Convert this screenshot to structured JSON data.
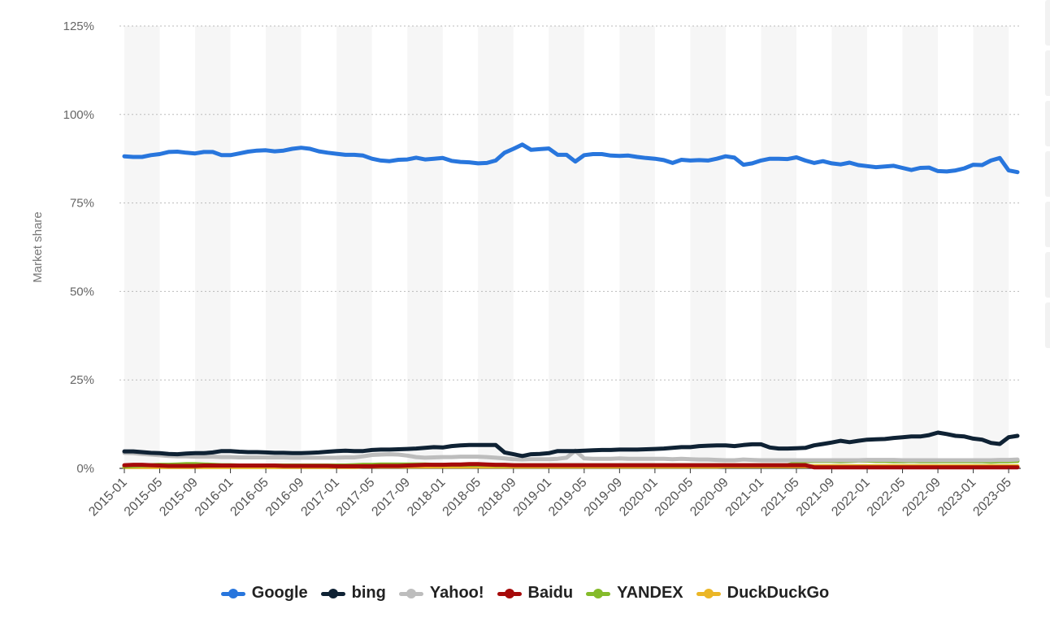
{
  "chart_data": {
    "type": "line",
    "title": "",
    "xlabel": "",
    "ylabel": "Market share",
    "ylim": [
      0,
      125
    ],
    "y_ticks": [
      "0%",
      "25%",
      "50%",
      "75%",
      "100%",
      "125%"
    ],
    "x_ticks": [
      "2015-01",
      "2015-05",
      "2015-09",
      "2016-01",
      "2016-05",
      "2016-09",
      "2017-01",
      "2017-05",
      "2017-09",
      "2018-01",
      "2018-05",
      "2018-09",
      "2019-01",
      "2019-05",
      "2019-09",
      "2020-01",
      "2020-05",
      "2020-09",
      "2021-01",
      "2021-05",
      "2021-09",
      "2022-01",
      "2022-05",
      "2022-09",
      "2023-01",
      "2023-05"
    ],
    "grid": true,
    "legend_position": "bottom",
    "series": [
      {
        "name": "Google",
        "color": "#2876DD",
        "values": [
          88.2,
          88,
          88,
          88.5,
          88.8,
          89.4,
          89.5,
          89.2,
          89,
          89.4,
          89.4,
          88.5,
          88.5,
          89,
          89.5,
          89.8,
          89.9,
          89.6,
          89.8,
          90.3,
          90.6,
          90.3,
          89.6,
          89.2,
          88.9,
          88.6,
          88.6,
          88.4,
          87.5,
          87,
          86.8,
          87.2,
          87.3,
          87.8,
          87.3,
          87.5,
          87.7,
          86.9,
          86.6,
          86.5,
          86.2,
          86.3,
          87,
          89.2,
          90.3,
          91.5,
          90,
          90.2,
          90.4,
          88.6,
          88.6,
          86.7,
          88.5,
          88.8,
          88.8,
          88.4,
          88.3,
          88.4,
          88,
          87.7,
          87.5,
          87.1,
          86.3,
          87.2,
          87,
          87.1,
          87,
          87.5,
          88.2,
          87.8,
          85.8,
          86.2,
          87,
          87.5,
          87.5,
          87.4,
          87.9,
          87,
          86.3,
          86.8,
          86.2,
          85.9,
          86.4,
          85.7,
          85.4,
          85.1,
          85.3,
          85.5,
          84.9,
          84.3,
          84.9,
          85,
          84,
          83.9,
          84.2,
          84.8,
          85.8,
          85.7,
          87,
          87.7,
          84.2,
          83.7
        ]
      },
      {
        "name": "bing",
        "color": "#0F2234",
        "values": [
          4.8,
          4.8,
          4.6,
          4.4,
          4.3,
          4.1,
          4.0,
          4.2,
          4.3,
          4.3,
          4.5,
          4.9,
          4.9,
          4.7,
          4.6,
          4.6,
          4.5,
          4.4,
          4.4,
          4.3,
          4.3,
          4.4,
          4.5,
          4.7,
          4.9,
          5.0,
          4.9,
          4.9,
          5.2,
          5.3,
          5.3,
          5.4,
          5.5,
          5.6,
          5.8,
          6.0,
          5.9,
          6.3,
          6.5,
          6.6,
          6.6,
          6.6,
          6.6,
          4.5,
          4.0,
          3.5,
          4.0,
          4.1,
          4.3,
          4.9,
          4.9,
          4.9,
          5.0,
          5.1,
          5.2,
          5.2,
          5.3,
          5.3,
          5.3,
          5.4,
          5.5,
          5.6,
          5.8,
          6.0,
          6.0,
          6.3,
          6.4,
          6.5,
          6.5,
          6.3,
          6.6,
          6.8,
          6.8,
          5.9,
          5.6,
          5.6,
          5.7,
          5.8,
          6.5,
          6.9,
          7.3,
          7.8,
          7.4,
          7.8,
          8.1,
          8.2,
          8.3,
          8.6,
          8.8,
          9.0,
          9.0,
          9.4,
          10.1,
          9.7,
          9.2,
          9.0,
          8.4,
          8.1,
          7.2,
          6.9,
          8.8,
          9.2
        ]
      },
      {
        "name": "Yahoo!",
        "color": "#BDBDBD",
        "values": [
          4.4,
          4.3,
          4.1,
          3.9,
          3.7,
          3.5,
          3.4,
          3.4,
          3.3,
          3.3,
          3.3,
          3.2,
          3.2,
          3.1,
          3.1,
          3.1,
          3.1,
          3.1,
          3.1,
          3.0,
          3.0,
          3.0,
          3.0,
          3.0,
          3.0,
          3.1,
          3.1,
          3.4,
          3.8,
          3.9,
          4.0,
          3.9,
          3.6,
          3.2,
          3.0,
          3.1,
          3.2,
          3.2,
          3.3,
          3.3,
          3.3,
          3.2,
          3.0,
          2.8,
          2.6,
          2.5,
          2.6,
          2.6,
          2.6,
          2.7,
          3.0,
          5.0,
          2.8,
          2.7,
          2.7,
          2.7,
          2.8,
          2.7,
          2.7,
          2.7,
          2.7,
          2.7,
          2.6,
          2.7,
          2.6,
          2.5,
          2.5,
          2.4,
          2.3,
          2.3,
          2.5,
          2.4,
          2.3,
          2.3,
          2.3,
          2.3,
          2.3,
          2.3,
          2.3,
          2.3,
          2.3,
          2.3,
          2.3,
          2.3,
          2.4,
          2.4,
          2.4,
          2.4,
          2.3,
          2.3,
          2.3,
          2.3,
          2.3,
          2.3,
          2.3,
          2.3,
          2.3,
          2.3,
          2.3,
          2.4,
          2.4,
          2.5
        ]
      },
      {
        "name": "Baidu",
        "color": "#A60A0A",
        "values": [
          0.9,
          1.0,
          1.0,
          0.9,
          0.8,
          0.7,
          0.7,
          0.7,
          0.7,
          0.8,
          0.8,
          0.8,
          0.8,
          0.8,
          0.8,
          0.8,
          0.8,
          0.8,
          0.7,
          0.7,
          0.7,
          0.7,
          0.7,
          0.7,
          0.6,
          0.6,
          0.6,
          0.6,
          0.6,
          0.7,
          0.7,
          0.7,
          0.8,
          0.9,
          1.0,
          1.0,
          1.0,
          1.1,
          1.1,
          1.2,
          1.2,
          1.1,
          1.0,
          1.0,
          0.9,
          0.9,
          0.9,
          0.9,
          0.9,
          0.9,
          0.9,
          0.9,
          0.9,
          0.9,
          0.9,
          0.9,
          0.9,
          0.9,
          0.9,
          0.9,
          0.9,
          0.9,
          0.9,
          0.9,
          0.9,
          0.9,
          0.9,
          0.9,
          0.9,
          0.9,
          0.9,
          0.9,
          0.9,
          0.9,
          0.9,
          0.9,
          0.9,
          0.9,
          0.3,
          0.3,
          0.3,
          0.3,
          0.3,
          0.3,
          0.3,
          0.3,
          0.3,
          0.3,
          0.3,
          0.3,
          0.3,
          0.3,
          0.3,
          0.3,
          0.3,
          0.3,
          0.3,
          0.3,
          0.3,
          0.3,
          0.3,
          0.3
        ]
      },
      {
        "name": "YANDEX",
        "color": "#84BB2A",
        "values": [
          0.6,
          0.7,
          0.8,
          0.9,
          1.0,
          1.0,
          1.1,
          1.2,
          1.2,
          1.1,
          1.0,
          0.9,
          0.9,
          0.8,
          0.8,
          0.8,
          0.8,
          0.8,
          0.8,
          0.8,
          0.8,
          0.8,
          0.8,
          0.8,
          0.8,
          0.8,
          0.9,
          1.0,
          1.0,
          1.1,
          1.1,
          1.1,
          1.1,
          1.1,
          1.1,
          1.0,
          1.0,
          1.0,
          1.0,
          1.0,
          1.0,
          1.0,
          0.9,
          0.9,
          0.9,
          0.9,
          0.9,
          0.9,
          0.9,
          0.9,
          0.9,
          0.9,
          0.9,
          0.9,
          0.9,
          0.9,
          0.9,
          0.9,
          0.9,
          0.9,
          0.9,
          0.9,
          0.9,
          0.9,
          0.9,
          0.9,
          0.9,
          0.9,
          0.9,
          0.9,
          0.9,
          0.9,
          0.9,
          0.9,
          0.9,
          0.9,
          1.5,
          2.0,
          2.1,
          2.1,
          2.1,
          2.0,
          2.1,
          2.2,
          2.2,
          2.1,
          2.1,
          2.0,
          2.0,
          2.1,
          2.0,
          2.0,
          2.0,
          2.0,
          2.0,
          2.0,
          2.0,
          2.0,
          1.9,
          2.0,
          2.0,
          2.1
        ]
      },
      {
        "name": "DuckDuckGo",
        "color": "#EBB626",
        "values": [
          0.4,
          0.4,
          0.4,
          0.4,
          0.4,
          0.4,
          0.4,
          0.4,
          0.4,
          0.4,
          0.4,
          0.4,
          0.4,
          0.4,
          0.4,
          0.4,
          0.4,
          0.4,
          0.4,
          0.4,
          0.4,
          0.4,
          0.4,
          0.4,
          0.4,
          0.4,
          0.4,
          0.5,
          0.5,
          0.5,
          0.5,
          0.5,
          0.5,
          0.5,
          0.5,
          0.5,
          0.5,
          0.5,
          0.5,
          0.5,
          0.5,
          0.5,
          0.5,
          0.5,
          0.5,
          0.5,
          0.5,
          0.5,
          0.5,
          0.5,
          0.5,
          0.5,
          0.5,
          0.5,
          0.5,
          0.5,
          0.5,
          0.5,
          0.5,
          0.5,
          0.5,
          0.5,
          0.5,
          0.5,
          0.5,
          0.5,
          0.5,
          0.5,
          0.6,
          0.6,
          0.6,
          0.6,
          0.6,
          0.6,
          0.6,
          0.6,
          0.6,
          0.6,
          0.6,
          0.6,
          0.6,
          0.6,
          0.6,
          0.6,
          0.6,
          0.6,
          0.6,
          0.6,
          0.6,
          0.6,
          0.6,
          0.6,
          0.6,
          0.6,
          0.6,
          0.6,
          0.6,
          0.6,
          0.6,
          0.6,
          0.6,
          0.6
        ]
      }
    ]
  }
}
